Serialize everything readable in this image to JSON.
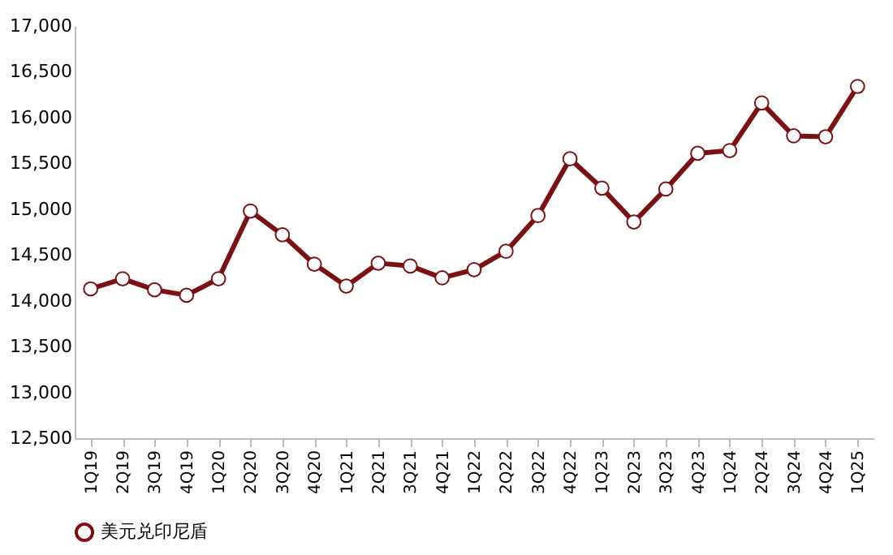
{
  "chart_data": {
    "type": "line",
    "categories": [
      "1Q19",
      "2Q19",
      "3Q19",
      "4Q19",
      "1Q20",
      "2Q20",
      "3Q20",
      "4Q20",
      "1Q21",
      "2Q21",
      "3Q21",
      "4Q21",
      "1Q22",
      "2Q22",
      "3Q22",
      "4Q22",
      "1Q23",
      "2Q23",
      "3Q23",
      "4Q23",
      "1Q24",
      "2Q24",
      "3Q24",
      "4Q24",
      "1Q25"
    ],
    "series": [
      {
        "name": "美元兑印尼盾",
        "color": "#7b1113",
        "values": [
          14130,
          14240,
          14120,
          14060,
          14240,
          14980,
          14720,
          14400,
          14160,
          14410,
          14380,
          14250,
          14340,
          14540,
          14930,
          15550,
          15230,
          14860,
          15220,
          15610,
          15640,
          16160,
          15800,
          15790,
          16340
        ]
      }
    ],
    "ylim": [
      12500,
      17000
    ],
    "yticks": [
      {
        "value": 12500,
        "label": "12,500"
      },
      {
        "value": 13000,
        "label": "13,000"
      },
      {
        "value": 13500,
        "label": "13,500"
      },
      {
        "value": 14000,
        "label": "14,000"
      },
      {
        "value": 14500,
        "label": "14,500"
      },
      {
        "value": 15000,
        "label": "15,000"
      },
      {
        "value": 15500,
        "label": "15,500"
      },
      {
        "value": 16000,
        "label": "16,000"
      },
      {
        "value": 16500,
        "label": "16,500"
      },
      {
        "value": 17000,
        "label": "17,000"
      }
    ],
    "grid": false,
    "legend": "bottom",
    "marker": "circle",
    "line_style": "solid"
  }
}
